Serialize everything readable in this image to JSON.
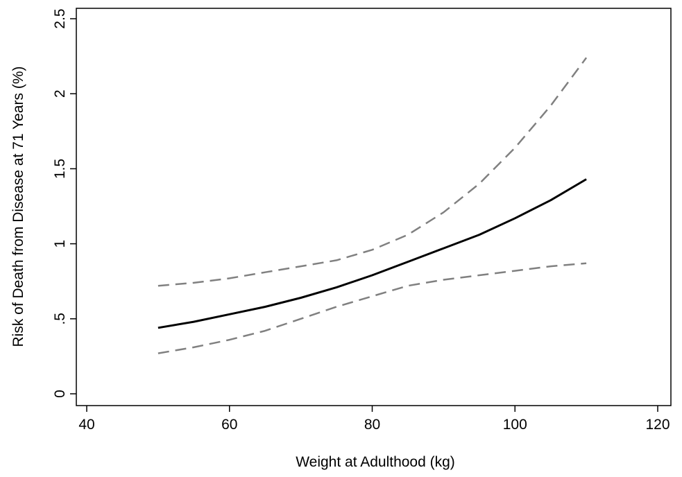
{
  "chart_data": {
    "type": "line",
    "title": "",
    "xlabel": "Weight at Adulthood (kg)",
    "ylabel": "Risk of Death from Disease at 71 Years (%)",
    "xlim": [
      40,
      120
    ],
    "ylim": [
      0,
      2.5
    ],
    "x_ticks": [
      40,
      60,
      80,
      100,
      120
    ],
    "x_tick_labels": [
      "40",
      "60",
      "80",
      "100",
      "120"
    ],
    "y_ticks": [
      0,
      0.5,
      1,
      1.5,
      2,
      2.5
    ],
    "y_tick_labels": [
      "0",
      ".5",
      "1",
      "1.5",
      "2",
      "2.5"
    ],
    "grid": false,
    "legend": "none",
    "series": [
      {
        "role": "estimate",
        "style": "solid",
        "color": "#000000",
        "x": [
          50,
          55,
          60,
          65,
          70,
          75,
          80,
          85,
          90,
          95,
          100,
          105,
          110
        ],
        "y": [
          0.44,
          0.48,
          0.53,
          0.58,
          0.64,
          0.71,
          0.79,
          0.88,
          0.97,
          1.06,
          1.17,
          1.29,
          1.43
        ]
      },
      {
        "role": "upper-ci",
        "style": "dashed",
        "color": "#808080",
        "x": [
          50,
          55,
          60,
          65,
          70,
          75,
          80,
          85,
          90,
          95,
          100,
          105,
          110
        ],
        "y": [
          0.72,
          0.74,
          0.77,
          0.81,
          0.85,
          0.89,
          0.96,
          1.06,
          1.21,
          1.4,
          1.64,
          1.92,
          2.24
        ]
      },
      {
        "role": "lower-ci",
        "style": "dashed",
        "color": "#808080",
        "x": [
          50,
          55,
          60,
          65,
          70,
          75,
          80,
          85,
          90,
          95,
          100,
          105,
          110
        ],
        "y": [
          0.27,
          0.31,
          0.36,
          0.42,
          0.5,
          0.58,
          0.65,
          0.72,
          0.76,
          0.79,
          0.82,
          0.85,
          0.87
        ]
      }
    ]
  }
}
